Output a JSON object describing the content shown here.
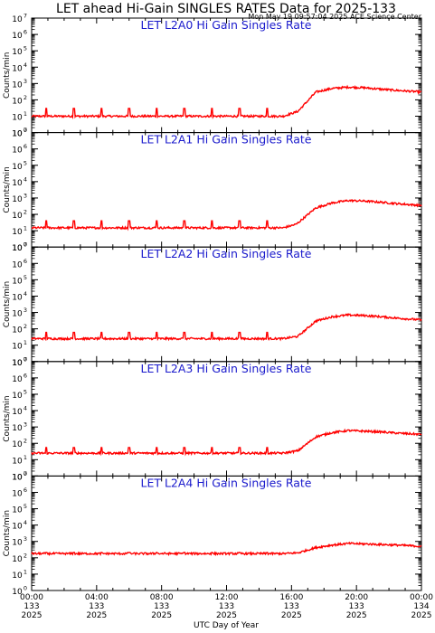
{
  "title": "LET ahead Hi-Gain SINGLES RATES Data for 2025-133",
  "timestamp": "Mon May 19 09:57:04 2025 ACE Science Center",
  "chart_data": {
    "type": "line",
    "xlabel": "UTC Day of Year",
    "ylabel": "Counts/min",
    "y_scale": "log",
    "ylim": [
      1,
      10000000
    ],
    "xlim_hours": [
      0,
      24
    ],
    "y_ticks": [
      {
        "base": "10",
        "exp": "0"
      },
      {
        "base": "10",
        "exp": "1"
      },
      {
        "base": "10",
        "exp": "2"
      },
      {
        "base": "10",
        "exp": "3"
      },
      {
        "base": "10",
        "exp": "4"
      },
      {
        "base": "10",
        "exp": "5"
      },
      {
        "base": "10",
        "exp": "6"
      },
      {
        "base": "10",
        "exp": "7"
      }
    ],
    "x_ticks": [
      {
        "hour": 0,
        "time": "00:00",
        "doy": "133",
        "year": "2025"
      },
      {
        "hour": 4,
        "time": "04:00",
        "doy": "133",
        "year": "2025"
      },
      {
        "hour": 8,
        "time": "08:00",
        "doy": "133",
        "year": "2025"
      },
      {
        "hour": 12,
        "time": "12:00",
        "doy": "133",
        "year": "2025"
      },
      {
        "hour": 16,
        "time": "16:00",
        "doy": "133",
        "year": "2025"
      },
      {
        "hour": 20,
        "time": "20:00",
        "doy": "133",
        "year": "2025"
      },
      {
        "hour": 24,
        "time": "00:00",
        "doy": "134",
        "year": "2025"
      }
    ],
    "line_color": "#ff0000",
    "panels": [
      {
        "name": "LET L2A0 Hi Gain Singles Rate",
        "hours": [
          0,
          2,
          4,
          6,
          8,
          10,
          12,
          14,
          15.5,
          16.4,
          17.5,
          18.5,
          19.5,
          20.5,
          21.5,
          22.5,
          24
        ],
        "values": [
          10,
          10,
          10,
          10,
          10,
          10,
          10,
          10,
          10,
          20,
          300,
          500,
          600,
          550,
          450,
          380,
          300
        ],
        "spike_hours": [
          0.9,
          2.6,
          4.3,
          6.0,
          7.7,
          9.4,
          11.1,
          12.8,
          14.5
        ],
        "spike_values": [
          30,
          30,
          30,
          30,
          30,
          30,
          30,
          30,
          30
        ]
      },
      {
        "name": "LET L2A1 Hi Gain Singles Rate",
        "hours": [
          0,
          2,
          4,
          6,
          8,
          10,
          12,
          14,
          15.5,
          16.3,
          17.5,
          18.5,
          19.5,
          20.5,
          21.5,
          22.5,
          24
        ],
        "values": [
          15,
          15,
          15,
          15,
          15,
          15,
          15,
          15,
          15,
          25,
          250,
          500,
          700,
          650,
          550,
          450,
          350
        ],
        "spike_hours": [
          0.9,
          2.6,
          4.3,
          6.0,
          7.7,
          9.4,
          11.1,
          12.8,
          14.5
        ],
        "spike_values": [
          40,
          40,
          40,
          40,
          40,
          40,
          40,
          40,
          40
        ]
      },
      {
        "name": "LET L2A2 Hi Gain Singles Rate",
        "hours": [
          0,
          2,
          4,
          6,
          8,
          10,
          12,
          14,
          15.5,
          16.4,
          17.5,
          18.5,
          19.5,
          20.5,
          21.5,
          22.5,
          24
        ],
        "values": [
          25,
          25,
          25,
          25,
          25,
          25,
          25,
          25,
          25,
          35,
          300,
          550,
          700,
          650,
          550,
          450,
          350
        ],
        "spike_hours": [
          0.9,
          2.6,
          4.3,
          6.0,
          7.7,
          9.4,
          11.1,
          12.8,
          14.5
        ],
        "spike_values": [
          60,
          60,
          60,
          60,
          60,
          60,
          60,
          60,
          60
        ]
      },
      {
        "name": "LET L2A3 Hi Gain Singles Rate",
        "hours": [
          0,
          2,
          4,
          6,
          8,
          10,
          12,
          14,
          15.5,
          16.4,
          17.5,
          18.5,
          19.5,
          20.5,
          21.5,
          22.5,
          24
        ],
        "values": [
          25,
          25,
          25,
          25,
          25,
          25,
          25,
          25,
          25,
          35,
          250,
          450,
          600,
          550,
          500,
          420,
          350
        ],
        "spike_hours": [
          0.9,
          2.6,
          4.3,
          6.0,
          7.7,
          9.4,
          11.1,
          12.8,
          14.5
        ],
        "spike_values": [
          55,
          55,
          55,
          55,
          55,
          55,
          55,
          55,
          55
        ]
      },
      {
        "name": "LET L2A4 Hi Gain Singles Rate",
        "hours": [
          0,
          2,
          4,
          6,
          8,
          10,
          12,
          14,
          15.5,
          16.4,
          17.5,
          18.5,
          19.5,
          20.5,
          21.5,
          22.5,
          24
        ],
        "values": [
          180,
          180,
          180,
          180,
          180,
          180,
          180,
          180,
          180,
          200,
          420,
          600,
          750,
          700,
          650,
          600,
          500
        ],
        "spike_hours": [
          0.9,
          2.6,
          4.3,
          6.0,
          7.7,
          9.4,
          11.1,
          12.8,
          14.5
        ],
        "spike_values": [
          210,
          210,
          210,
          210,
          210,
          210,
          210,
          210,
          210
        ]
      }
    ]
  }
}
